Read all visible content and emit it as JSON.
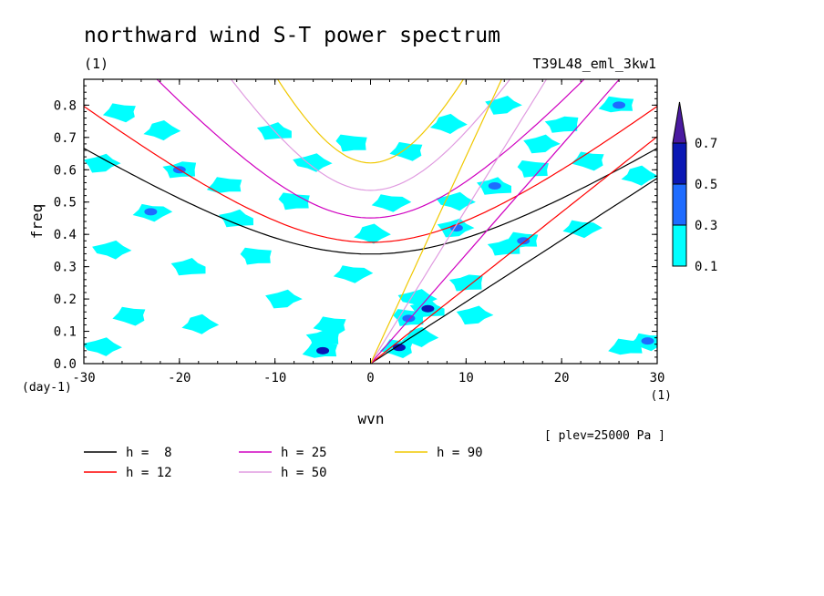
{
  "chart_data": {
    "type": "heatmap",
    "title": "northward wind S-T power spectrum",
    "subtitle_left": "(1)",
    "subtitle_right": "T39L48_eml_3kw1",
    "xlabel": "wvn",
    "ylabel": "freq",
    "x_unit": "(1)",
    "y_unit": "(day-1)",
    "xlim": [
      -30,
      30
    ],
    "ylim": [
      0,
      0.88
    ],
    "xticks": [
      "-30",
      "-20",
      "-10",
      "0",
      "10",
      "20",
      "30"
    ],
    "yticks": [
      "0.0",
      "0.1",
      "0.2",
      "0.3",
      "0.4",
      "0.5",
      "0.6",
      "0.7",
      "0.8"
    ],
    "annotation": "[ plev=25000 Pa ]",
    "colorbar": {
      "levels": [
        "0.1",
        "0.3",
        "0.5",
        "0.7"
      ],
      "colors": [
        "#00ffff",
        "#1e6cff",
        "#0a18b4",
        "#4a1aa0"
      ]
    },
    "dispersion_curves": [
      {
        "name": "h =  8",
        "h": 8,
        "color": "#000000"
      },
      {
        "name": "h = 12",
        "h": 12,
        "color": "#ff0000"
      },
      {
        "name": "h = 25",
        "h": 25,
        "color": "#d000c0"
      },
      {
        "name": "h = 50",
        "h": 50,
        "color": "#e09be0"
      },
      {
        "name": "h = 90",
        "h": 90,
        "color": "#f0c800"
      }
    ],
    "blobs": [
      {
        "x": -26,
        "y": 0.78,
        "level": 0
      },
      {
        "x": -22,
        "y": 0.72,
        "level": 0
      },
      {
        "x": -28,
        "y": 0.62,
        "level": 0
      },
      {
        "x": -20,
        "y": 0.6,
        "level": 1
      },
      {
        "x": -15,
        "y": 0.55,
        "level": 0
      },
      {
        "x": -23,
        "y": 0.47,
        "level": 1
      },
      {
        "x": -27,
        "y": 0.35,
        "level": 0
      },
      {
        "x": -19,
        "y": 0.3,
        "level": 0
      },
      {
        "x": -12,
        "y": 0.33,
        "level": 0
      },
      {
        "x": -25,
        "y": 0.15,
        "level": 0
      },
      {
        "x": -18,
        "y": 0.12,
        "level": 0
      },
      {
        "x": -9,
        "y": 0.2,
        "level": 0
      },
      {
        "x": -5,
        "y": 0.08,
        "level": 0
      },
      {
        "x": -5,
        "y": 0.04,
        "level": 2
      },
      {
        "x": -2,
        "y": 0.28,
        "level": 0
      },
      {
        "x": -6,
        "y": 0.62,
        "level": 0
      },
      {
        "x": -10,
        "y": 0.72,
        "level": 0
      },
      {
        "x": -2,
        "y": 0.68,
        "level": 0
      },
      {
        "x": 4,
        "y": 0.66,
        "level": 0
      },
      {
        "x": 8,
        "y": 0.74,
        "level": 0
      },
      {
        "x": 14,
        "y": 0.8,
        "level": 0
      },
      {
        "x": 20,
        "y": 0.74,
        "level": 0
      },
      {
        "x": 26,
        "y": 0.8,
        "level": 1
      },
      {
        "x": 2,
        "y": 0.5,
        "level": 0
      },
      {
        "x": 9,
        "y": 0.5,
        "level": 0
      },
      {
        "x": 13,
        "y": 0.55,
        "level": 1
      },
      {
        "x": 17,
        "y": 0.6,
        "level": 0
      },
      {
        "x": 23,
        "y": 0.63,
        "level": 0
      },
      {
        "x": 28,
        "y": 0.58,
        "level": 0
      },
      {
        "x": 9,
        "y": 0.42,
        "level": 1
      },
      {
        "x": 14,
        "y": 0.36,
        "level": 0
      },
      {
        "x": 16,
        "y": 0.38,
        "level": 1
      },
      {
        "x": 22,
        "y": 0.42,
        "level": 0
      },
      {
        "x": 5,
        "y": 0.2,
        "level": 0
      },
      {
        "x": 6,
        "y": 0.17,
        "level": 2
      },
      {
        "x": 4,
        "y": 0.14,
        "level": 1
      },
      {
        "x": 3,
        "y": 0.05,
        "level": 2
      },
      {
        "x": 5,
        "y": 0.08,
        "level": 0
      },
      {
        "x": 11,
        "y": 0.15,
        "level": 0
      },
      {
        "x": 10,
        "y": 0.25,
        "level": 0
      },
      {
        "x": 27,
        "y": 0.05,
        "level": 0
      },
      {
        "x": 29,
        "y": 0.07,
        "level": 1
      },
      {
        "x": -28,
        "y": 0.05,
        "level": 0
      },
      {
        "x": -14,
        "y": 0.45,
        "level": 0
      },
      {
        "x": -8,
        "y": 0.5,
        "level": 0
      },
      {
        "x": -4,
        "y": 0.12,
        "level": 0
      },
      {
        "x": 0,
        "y": 0.4,
        "level": 0
      },
      {
        "x": 18,
        "y": 0.68,
        "level": 0
      }
    ]
  }
}
